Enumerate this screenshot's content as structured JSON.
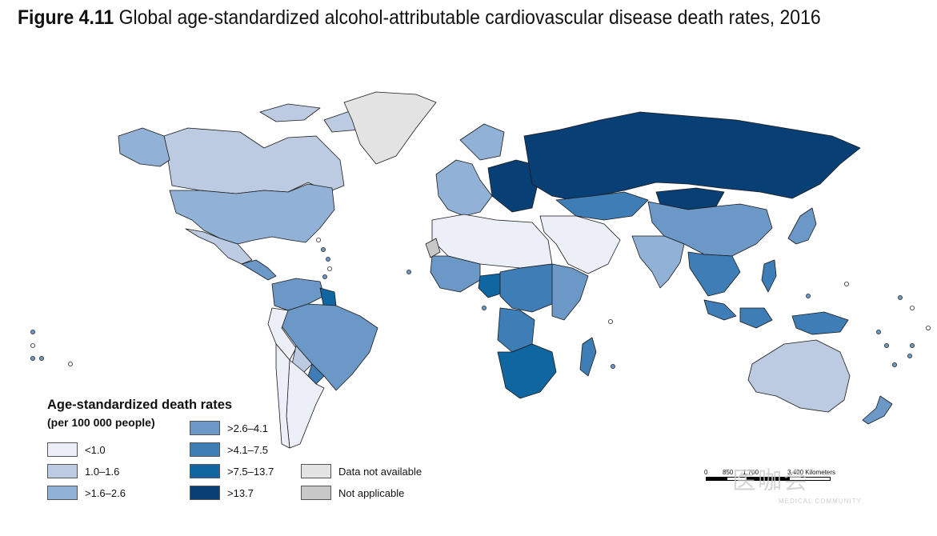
{
  "title": {
    "label": "Figure 4.11",
    "text": "Global age-standardized alcohol-attributable cardiovascular disease death rates, 2016"
  },
  "legend": {
    "title": "Age-standardized death rates",
    "subtitle": "(per 100 000 people)",
    "items": [
      {
        "label": "<1.0",
        "color": "#eceef8"
      },
      {
        "label": "1.0–1.6",
        "color": "#bccbe2"
      },
      {
        "label": ">1.6–2.6",
        "color": "#91b1d6"
      },
      {
        "label": ">2.6–4.1",
        "color": "#6b98c7"
      },
      {
        "label": ">4.1–7.5",
        "color": "#3f7db6"
      },
      {
        "label": ">7.5–13.7",
        "color": "#0f66a0"
      },
      {
        "label": ">13.7",
        "color": "#083f75"
      },
      {
        "label": "Data not available",
        "color": "#e3e3e3"
      },
      {
        "label": "Not applicable",
        "color": "#c8c8c8"
      }
    ]
  },
  "scale_bar": {
    "labels": [
      "0",
      "850",
      "1,700",
      "3,400 Kilometers"
    ]
  },
  "watermark": {
    "text": "医咖会",
    "sub": "MEDICAL COMMUNITY"
  },
  "regions": [
    {
      "name": "Canada",
      "class": "1.0–1.6"
    },
    {
      "name": "United States",
      "class": ">1.6–2.6"
    },
    {
      "name": "Greenland",
      "class": "Data not available"
    },
    {
      "name": "Alaska",
      "class": ">1.6–2.6"
    },
    {
      "name": "Mexico",
      "class": "1.0–1.6"
    },
    {
      "name": "Central America",
      "class": ">2.6–4.1"
    },
    {
      "name": "Venezuela/Colombia",
      "class": ">2.6–4.1"
    },
    {
      "name": "Guyana",
      "class": ">7.5–13.7"
    },
    {
      "name": "Brazil",
      "class": ">2.6–4.1"
    },
    {
      "name": "Peru",
      "class": "<1.0"
    },
    {
      "name": "Bolivia",
      "class": "1.0–1.6"
    },
    {
      "name": "Paraguay",
      "class": ">4.1–7.5"
    },
    {
      "name": "Argentina",
      "class": "<1.0"
    },
    {
      "name": "Chile",
      "class": "<1.0"
    },
    {
      "name": "Western Europe",
      "class": ">1.6–2.6"
    },
    {
      "name": "Eastern Europe",
      "class": ">13.7"
    },
    {
      "name": "Russia",
      "class": ">13.7"
    },
    {
      "name": "Kazakhstan",
      "class": ">4.1–7.5"
    },
    {
      "name": "Mongolia",
      "class": ">13.7"
    },
    {
      "name": "China",
      "class": ">2.6–4.1"
    },
    {
      "name": "India",
      "class": ">1.6–2.6"
    },
    {
      "name": "Middle East",
      "class": "<1.0"
    },
    {
      "name": "North Africa",
      "class": "<1.0"
    },
    {
      "name": "West Africa",
      "class": ">2.6–4.1"
    },
    {
      "name": "Nigeria",
      "class": ">7.5–13.7"
    },
    {
      "name": "Central Africa",
      "class": ">4.1–7.5"
    },
    {
      "name": "East Africa",
      "class": ">2.6–4.1"
    },
    {
      "name": "Angola",
      "class": ">4.1–7.5"
    },
    {
      "name": "Southern Africa",
      "class": ">7.5–13.7"
    },
    {
      "name": "Madagascar",
      "class": ">4.1–7.5"
    },
    {
      "name": "Southeast Asia",
      "class": ">4.1–7.5"
    },
    {
      "name": "Indonesia",
      "class": ">4.1–7.5"
    },
    {
      "name": "Japan",
      "class": ">2.6–4.1"
    },
    {
      "name": "Australia",
      "class": "1.0–1.6"
    },
    {
      "name": "New Zealand",
      "class": ">2.6–4.1"
    },
    {
      "name": "Western Sahara",
      "class": "Not applicable"
    }
  ]
}
